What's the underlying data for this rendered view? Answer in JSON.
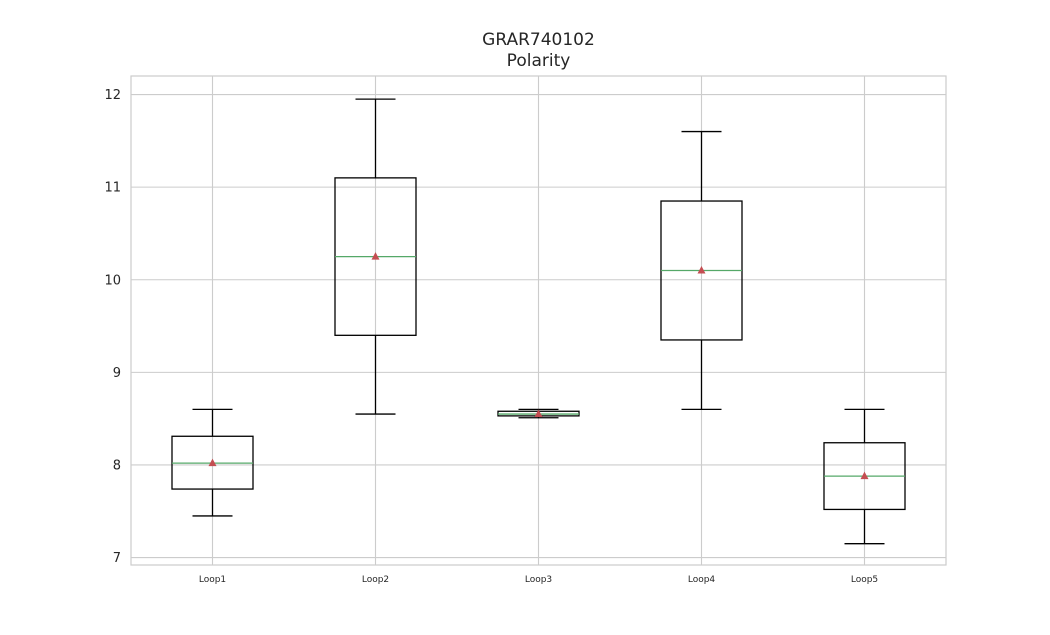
{
  "chart_data": {
    "type": "box",
    "title": "GRAR740102",
    "subtitle": "Polarity",
    "xlabel": "",
    "ylabel": "",
    "ylim": [
      6.92,
      12.2
    ],
    "yticks": [
      7,
      8,
      9,
      10,
      11,
      12
    ],
    "grid": true,
    "categories": [
      "Loop1",
      "Loop2",
      "Loop3",
      "Loop4",
      "Loop5"
    ],
    "boxes": [
      {
        "label": "Loop1",
        "whislo": 7.45,
        "q1": 7.74,
        "median": 8.02,
        "q3": 8.31,
        "whishi": 8.6,
        "mean": 8.02
      },
      {
        "label": "Loop2",
        "whislo": 8.55,
        "q1": 9.4,
        "median": 10.25,
        "q3": 11.1,
        "whishi": 11.95,
        "mean": 10.25
      },
      {
        "label": "Loop3",
        "whislo": 8.51,
        "q1": 8.53,
        "median": 8.55,
        "q3": 8.58,
        "whishi": 8.6,
        "mean": 8.55
      },
      {
        "label": "Loop4",
        "whislo": 8.6,
        "q1": 9.35,
        "median": 10.1,
        "q3": 10.85,
        "whishi": 11.6,
        "mean": 10.1
      },
      {
        "label": "Loop5",
        "whislo": 7.15,
        "q1": 7.52,
        "median": 7.88,
        "q3": 8.24,
        "whishi": 8.6,
        "mean": 7.88
      }
    ],
    "colors": {
      "box": "#000000",
      "median": "#55a868",
      "mean_marker": "#c44e52",
      "grid": "#cccccc",
      "frame": "#cccccc",
      "text": "#262626"
    }
  }
}
